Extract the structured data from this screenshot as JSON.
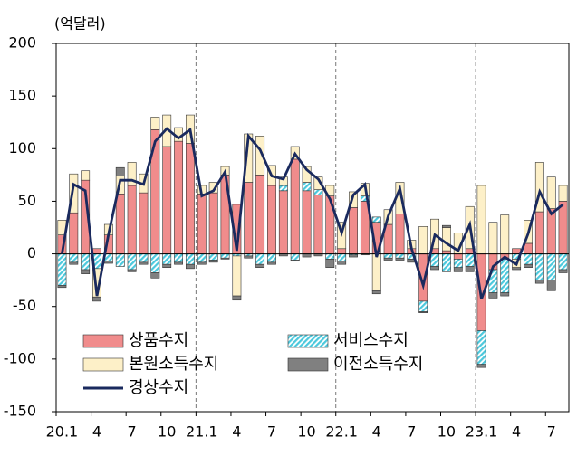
{
  "chart_data": {
    "type": "bar",
    "stacked": true,
    "y_axis_label": "(억달러)",
    "categories": [
      "20.1",
      null,
      null,
      "4",
      null,
      null,
      "7",
      null,
      null,
      "10",
      null,
      null,
      "21.1",
      null,
      null,
      "4",
      null,
      null,
      "7",
      null,
      null,
      "10",
      null,
      null,
      "22.1",
      null,
      null,
      "4",
      null,
      null,
      "7",
      null,
      null,
      "10",
      null,
      null,
      "23.1",
      null,
      null,
      "4",
      null,
      null,
      "7",
      null
    ],
    "series": [
      {
        "name": "상품수지",
        "type": "bar",
        "color": "#f08c8c",
        "values": [
          18,
          39,
          70,
          5,
          18,
          57,
          65,
          58,
          118,
          102,
          107,
          105,
          57,
          58,
          75,
          47,
          68,
          75,
          65,
          60,
          90,
          60,
          56,
          55,
          5,
          44,
          50,
          30,
          28,
          38,
          5,
          -45,
          5,
          3,
          -5,
          5,
          -73,
          -15,
          -5,
          5,
          10,
          40,
          43,
          50
        ]
      },
      {
        "name": "서비스수지",
        "type": "bar",
        "color": "#4cc8dc",
        "hatch": true,
        "values": [
          -30,
          -8,
          -15,
          -14,
          -7,
          -12,
          -15,
          -8,
          -18,
          -10,
          -8,
          -10,
          -8,
          -6,
          -4,
          -2,
          -2,
          -10,
          -8,
          5,
          -6,
          8,
          5,
          -5,
          -7,
          -1,
          5,
          5,
          -4,
          -4,
          -5,
          -10,
          -12,
          -17,
          -8,
          -12,
          -32,
          -22,
          -32,
          -5,
          -10,
          -25,
          -25,
          -15
        ]
      },
      {
        "name": "본원소득수지",
        "type": "bar",
        "color": "#fdf0c8",
        "values": [
          14,
          37,
          9,
          -27,
          10,
          17,
          22,
          18,
          12,
          30,
          13,
          27,
          8,
          10,
          8,
          -38,
          46,
          37,
          19,
          8,
          12,
          15,
          12,
          10,
          25,
          15,
          12,
          -35,
          14,
          30,
          8,
          26,
          28,
          22,
          20,
          40,
          65,
          30,
          37,
          -8,
          22,
          47,
          30,
          15
        ]
      },
      {
        "name": "이전소득수지",
        "type": "bar",
        "color": "#808080",
        "values": [
          -2,
          -2,
          -4,
          -4,
          -2,
          8,
          -2,
          -2,
          -5,
          -3,
          -2,
          -4,
          -2,
          -2,
          -1,
          -4,
          -2,
          -3,
          -2,
          -2,
          -1,
          -3,
          -2,
          -8,
          -3,
          -2,
          -1,
          -3,
          -2,
          -2,
          -3,
          -1,
          -3,
          2,
          -4,
          -5,
          -3,
          -5,
          -3,
          -2,
          -3,
          -3,
          -10,
          -3
        ]
      },
      {
        "name": "경상수지",
        "type": "line",
        "color": "#1a2a5e",
        "values": [
          0,
          66,
          60,
          -40,
          19,
          70,
          70,
          66,
          107,
          119,
          110,
          118,
          55,
          60,
          78,
          3,
          112,
          99,
          74,
          71,
          95,
          80,
          71,
          52,
          20,
          56,
          66,
          -3,
          36,
          62,
          5,
          -30,
          18,
          10,
          3,
          28,
          -43,
          -12,
          -3,
          -10,
          19,
          59,
          38,
          47
        ]
      }
    ],
    "ylim": [
      -150,
      200
    ],
    "yticks": [
      -150,
      -100,
      -50,
      0,
      50,
      100,
      150,
      200
    ]
  }
}
